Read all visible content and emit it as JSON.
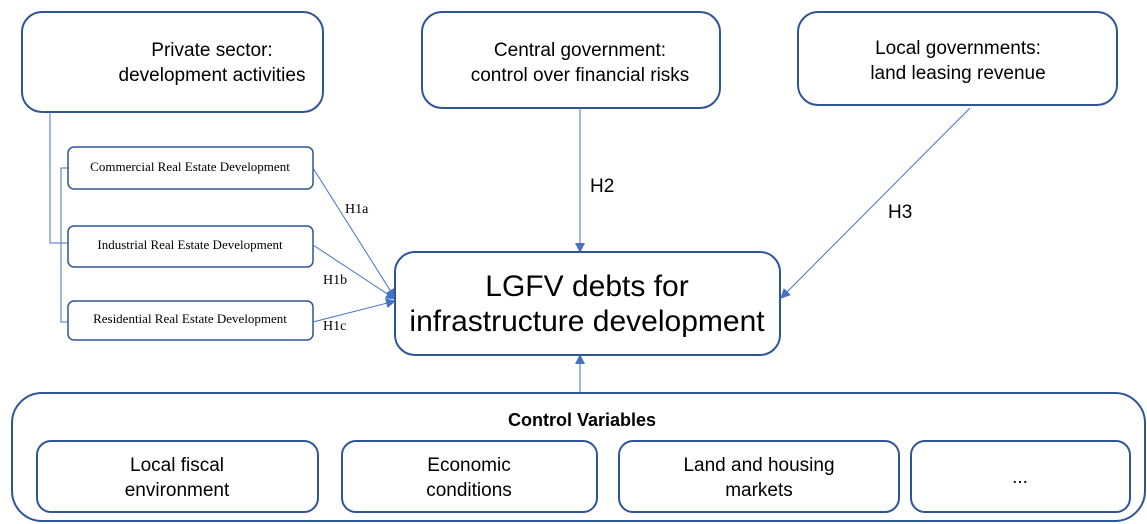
{
  "nodes": [
    {
      "lines": [
        "Private sector:",
        "development activities"
      ]
    },
    {
      "lines": [
        "Central government:",
        "control over financial risks"
      ]
    },
    {
      "lines": [
        "Local governments:",
        "land leasing revenue"
      ]
    },
    {
      "lines": [
        "Commercial Real Estate Development"
      ]
    },
    {
      "lines": [
        "Industrial Real Estate Development"
      ]
    },
    {
      "lines": [
        "Residential Real Estate Development"
      ]
    },
    {
      "lines": [
        "LGFV debts for",
        "infrastructure development"
      ]
    }
  ],
  "edges": [
    {
      "label": "H1a"
    },
    {
      "label": "H1b"
    },
    {
      "label": "H1c"
    },
    {
      "label": "H2"
    },
    {
      "label": "H3"
    }
  ],
  "controls": {
    "title": "Control Variables",
    "items": [
      {
        "lines": [
          "Local fiscal",
          "environment"
        ]
      },
      {
        "lines": [
          "Economic",
          "conditions"
        ]
      },
      {
        "lines": [
          "Land and housing",
          "markets"
        ]
      },
      {
        "lines": [
          "..."
        ]
      }
    ]
  }
}
